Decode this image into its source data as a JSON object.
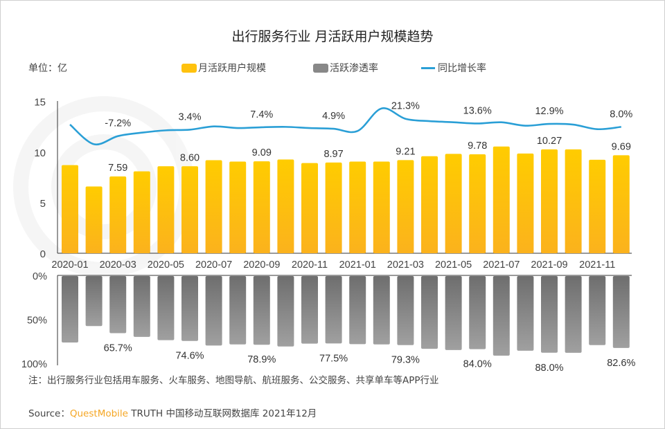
{
  "chart_data": {
    "type": "bar",
    "title": "出行服务行业 月活跃用户规模趋势",
    "unit_label": "单位：亿",
    "categories": [
      "2020-01",
      "2020-02",
      "2020-03",
      "2020-04",
      "2020-05",
      "2020-06",
      "2020-07",
      "2020-08",
      "2020-09",
      "2020-10",
      "2020-11",
      "2020-12",
      "2021-01",
      "2021-02",
      "2021-03",
      "2021-04",
      "2021-05",
      "2021-06",
      "2021-07",
      "2021-08",
      "2021-09",
      "2021-10",
      "2021-11",
      "2021-12"
    ],
    "tick_labels": [
      "2020-01",
      "2020-03",
      "2020-05",
      "2020-07",
      "2020-09",
      "2020-11",
      "2021-01",
      "2021-03",
      "2021-05",
      "2021-07",
      "2021-09",
      "2021-11"
    ],
    "y_ticks": [
      "15",
      "10",
      "5",
      "0"
    ],
    "ylim": [
      0,
      15
    ],
    "y2_ticks": [
      "0%",
      "50%",
      "100%"
    ],
    "y2lim": [
      0,
      100
    ],
    "legend_placement": "top",
    "series": [
      {
        "name": "月活跃用户规模",
        "type": "bar",
        "color": "#ffc20e",
        "values": [
          8.71,
          6.6,
          7.59,
          8.1,
          8.6,
          8.6,
          9.2,
          9.06,
          9.09,
          9.27,
          8.92,
          8.97,
          9.06,
          9.06,
          9.21,
          9.59,
          9.82,
          9.78,
          10.55,
          9.86,
          10.27,
          10.27,
          9.24,
          9.69
        ],
        "labels": [
          "",
          "",
          "7.59",
          "",
          "",
          "8.60",
          "",
          "",
          "9.09",
          "",
          "",
          "8.97",
          "",
          "",
          "9.21",
          "",
          "",
          "9.78",
          "",
          "",
          "10.27",
          "",
          "",
          "9.69"
        ]
      },
      {
        "name": "活跃渗透率",
        "type": "bar-inverted",
        "color": "#888888",
        "unit": "%",
        "values": [
          76.4,
          57.7,
          65.7,
          70.0,
          73.7,
          74.6,
          79.8,
          78.5,
          78.9,
          80.9,
          77.7,
          77.5,
          78.2,
          78.5,
          79.3,
          83.6,
          84.9,
          84.0,
          91.3,
          85.7,
          88.0,
          88.1,
          79.3,
          82.6
        ],
        "labels": [
          "",
          "",
          "65.7%",
          "",
          "",
          "74.6%",
          "",
          "",
          "78.9%",
          "",
          "",
          "77.5%",
          "",
          "",
          "79.3%",
          "",
          "",
          "84.0%",
          "",
          "",
          "88.0%",
          "",
          "",
          "82.6%"
        ]
      },
      {
        "name": "同比增长率",
        "type": "line",
        "color": "#2a9fd6",
        "unit": "%",
        "values": [
          11.8,
          -20.5,
          -7.2,
          -1.5,
          2.3,
          3.4,
          8.8,
          6.1,
          7.4,
          8.0,
          6.1,
          4.9,
          1.2,
          38.4,
          21.3,
          17.5,
          15.6,
          13.6,
          15.6,
          9.9,
          12.9,
          11.8,
          4.2,
          8.0
        ],
        "labels": [
          "",
          "",
          "-7.2%",
          "",
          "",
          "3.4%",
          "",
          "",
          "7.4%",
          "",
          "",
          "4.9%",
          "",
          "",
          "21.3%",
          "",
          "",
          "13.6%",
          "",
          "",
          "12.9%",
          "",
          "",
          "8.0%"
        ]
      }
    ]
  },
  "note": "注：出行服务行业包括用车服务、火车服务、地图导航、航班服务、公交服务、共享单车等APP行业",
  "source": {
    "prefix": "Source：",
    "brand": "QuestMobile",
    "rest": " TRUTH 中国移动互联网数据库 2021年12月"
  }
}
